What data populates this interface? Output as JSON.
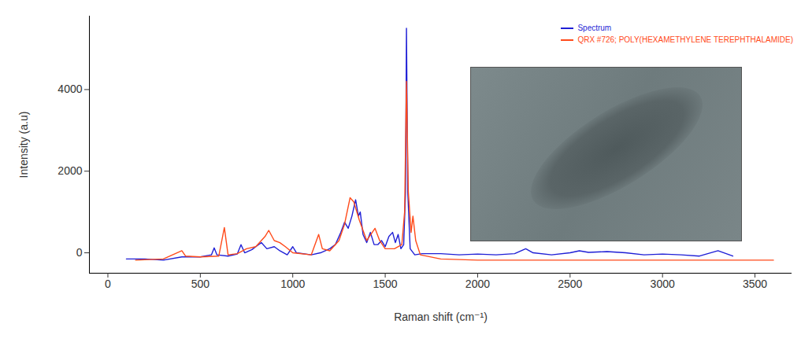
{
  "chart_data": {
    "type": "line",
    "x_label": "Raman shift (cm⁻¹)",
    "y_label": "Intensity (a.u)",
    "xlim": [
      -100,
      3700
    ],
    "ylim": [
      -500,
      5800
    ],
    "xticks": [
      0,
      500,
      1000,
      1500,
      2000,
      2500,
      3000,
      3500
    ],
    "yticks": [
      0,
      2000,
      4000
    ],
    "grid": false,
    "legend": "top-right",
    "series": [
      {
        "name": "Spectrum",
        "color": "#1f1fd6",
        "x": [
          100,
          200,
          300,
          400,
          500,
          560,
          575,
          590,
          650,
          700,
          720,
          740,
          780,
          800,
          830,
          860,
          900,
          930,
          970,
          1000,
          1020,
          1100,
          1150,
          1200,
          1230,
          1260,
          1280,
          1300,
          1320,
          1340,
          1355,
          1365,
          1380,
          1400,
          1420,
          1440,
          1460,
          1480,
          1500,
          1520,
          1540,
          1555,
          1570,
          1585,
          1600,
          1610,
          1615,
          1622,
          1635,
          1660,
          1700,
          1800,
          1900,
          2000,
          2100,
          2200,
          2260,
          2300,
          2400,
          2500,
          2550,
          2600,
          2700,
          2800,
          2900,
          3000,
          3100,
          3200,
          3300,
          3380
        ],
        "values": [
          -150,
          -150,
          -180,
          -100,
          -100,
          -50,
          120,
          -50,
          -80,
          -30,
          200,
          0,
          80,
          150,
          250,
          100,
          150,
          50,
          -50,
          150,
          0,
          -50,
          0,
          100,
          200,
          500,
          750,
          600,
          900,
          1300,
          900,
          1000,
          450,
          250,
          500,
          200,
          200,
          300,
          150,
          400,
          500,
          250,
          450,
          100,
          200,
          1500,
          5500,
          1500,
          100,
          -50,
          -20,
          -20,
          -50,
          -30,
          -50,
          -20,
          100,
          0,
          -50,
          0,
          50,
          10,
          30,
          0,
          -50,
          -30,
          -50,
          -80,
          50,
          -80
        ]
      },
      {
        "name": "QRX #726; POLY(HEXAMETHYLENE TEREPHTHALAMIDE)",
        "color": "#ff4a1a",
        "x": [
          150,
          300,
          400,
          420,
          500,
          600,
          630,
          650,
          700,
          750,
          800,
          850,
          870,
          900,
          930,
          960,
          1000,
          1100,
          1140,
          1160,
          1200,
          1250,
          1280,
          1310,
          1330,
          1360,
          1400,
          1445,
          1470,
          1500,
          1550,
          1590,
          1605,
          1615,
          1625,
          1640,
          1650,
          1665,
          1690,
          1800,
          2000,
          2500,
          3000,
          3600
        ],
        "values": [
          -180,
          -150,
          50,
          -80,
          -100,
          -80,
          620,
          -50,
          -20,
          100,
          150,
          400,
          550,
          300,
          250,
          150,
          0,
          -50,
          450,
          100,
          50,
          300,
          700,
          1350,
          1250,
          800,
          300,
          600,
          300,
          100,
          100,
          200,
          1000,
          4200,
          1500,
          500,
          900,
          300,
          -50,
          -150,
          -180,
          -180,
          -180,
          -180
        ]
      }
    ]
  }
}
